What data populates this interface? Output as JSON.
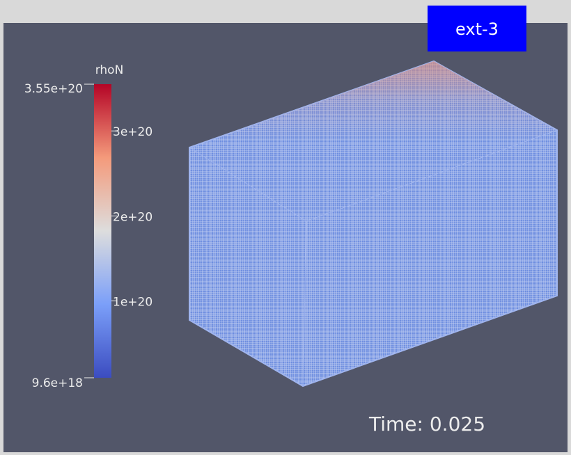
{
  "badge": "ext-3",
  "time_label": "Time: 0.025",
  "colorbar": {
    "title": "rhoN",
    "range": [
      {
        "value": 9.6e+18,
        "label": "9.6e+18"
      },
      {
        "value": 3.55e+20,
        "label": "3.55e+20"
      }
    ],
    "ticks": [
      {
        "value": 1e+20,
        "label": "1e+20"
      },
      {
        "value": 2e+20,
        "label": "2e+20"
      },
      {
        "value": 3e+20,
        "label": "3e+20"
      }
    ]
  }
}
